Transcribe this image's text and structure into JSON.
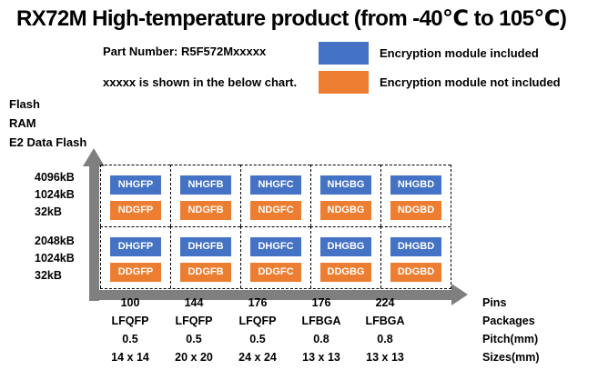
{
  "title": "RX72M High-temperature product (from -40℃ to 105℃)",
  "header": {
    "part_number": "Part Number: R5F572Mxxxxx",
    "note": "xxxxx is shown in the below chart."
  },
  "colors": {
    "encryption_blue": "#4472C4",
    "no_encryption_orange": "#ED7D31",
    "axis_gray": "#7F7F7F"
  },
  "legend": {
    "items": [
      {
        "key": "included",
        "color": "#4472C4",
        "label": "Encryption module included"
      },
      {
        "key": "not-included",
        "color": "#ED7D31",
        "label": "Encryption module not included"
      }
    ]
  },
  "y_axis": {
    "memory_type_labels": [
      "Flash",
      "RAM",
      "E2 Data Flash"
    ]
  },
  "x_axis": {
    "row_labels": [
      "Pins",
      "Packages",
      "Pitch(mm)",
      "Sizes(mm)"
    ]
  },
  "chart_data": {
    "type": "table",
    "title": "RX72M High-temperature product (from -40℃ to 105℃)",
    "legend": {
      "blue": "Encryption module included",
      "orange": "Encryption module not included"
    },
    "columns": [
      {
        "pins": "100",
        "package": "LFQFP",
        "pitch_mm": "0.5",
        "size_mm": "14 x 14"
      },
      {
        "pins": "144",
        "package": "LFQFP",
        "pitch_mm": "0.5",
        "size_mm": "20 x 20"
      },
      {
        "pins": "176",
        "package": "LFQFP",
        "pitch_mm": "0.5",
        "size_mm": "24 x 24"
      },
      {
        "pins": "176",
        "package": "LFBGA",
        "pitch_mm": "0.8",
        "size_mm": "13 x 13"
      },
      {
        "pins": "224",
        "package": "LFBGA",
        "pitch_mm": "0.8",
        "size_mm": "13 x 13"
      }
    ],
    "rows": [
      {
        "flash": "4096kB",
        "ram": "1024kB",
        "e2_data_flash": "32kB",
        "cells": [
          {
            "encryption": "NHGFP",
            "no_encryption": "NDGFP"
          },
          {
            "encryption": "NHGFB",
            "no_encryption": "NDGFB"
          },
          {
            "encryption": "NHGFC",
            "no_encryption": "NDGFC"
          },
          {
            "encryption": "NHGBG",
            "no_encryption": "NDGBG"
          },
          {
            "encryption": "NHGBD",
            "no_encryption": "NDGBD"
          }
        ]
      },
      {
        "flash": "2048kB",
        "ram": "1024kB",
        "e2_data_flash": "32kB",
        "cells": [
          {
            "encryption": "DHGFP",
            "no_encryption": "DDGFP"
          },
          {
            "encryption": "DHGFB",
            "no_encryption": "DDGFB"
          },
          {
            "encryption": "DHGFC",
            "no_encryption": "DDGFC"
          },
          {
            "encryption": "DHGBG",
            "no_encryption": "DDGBG"
          },
          {
            "encryption": "DHGBD",
            "no_encryption": "DDGBD"
          }
        ]
      }
    ]
  }
}
